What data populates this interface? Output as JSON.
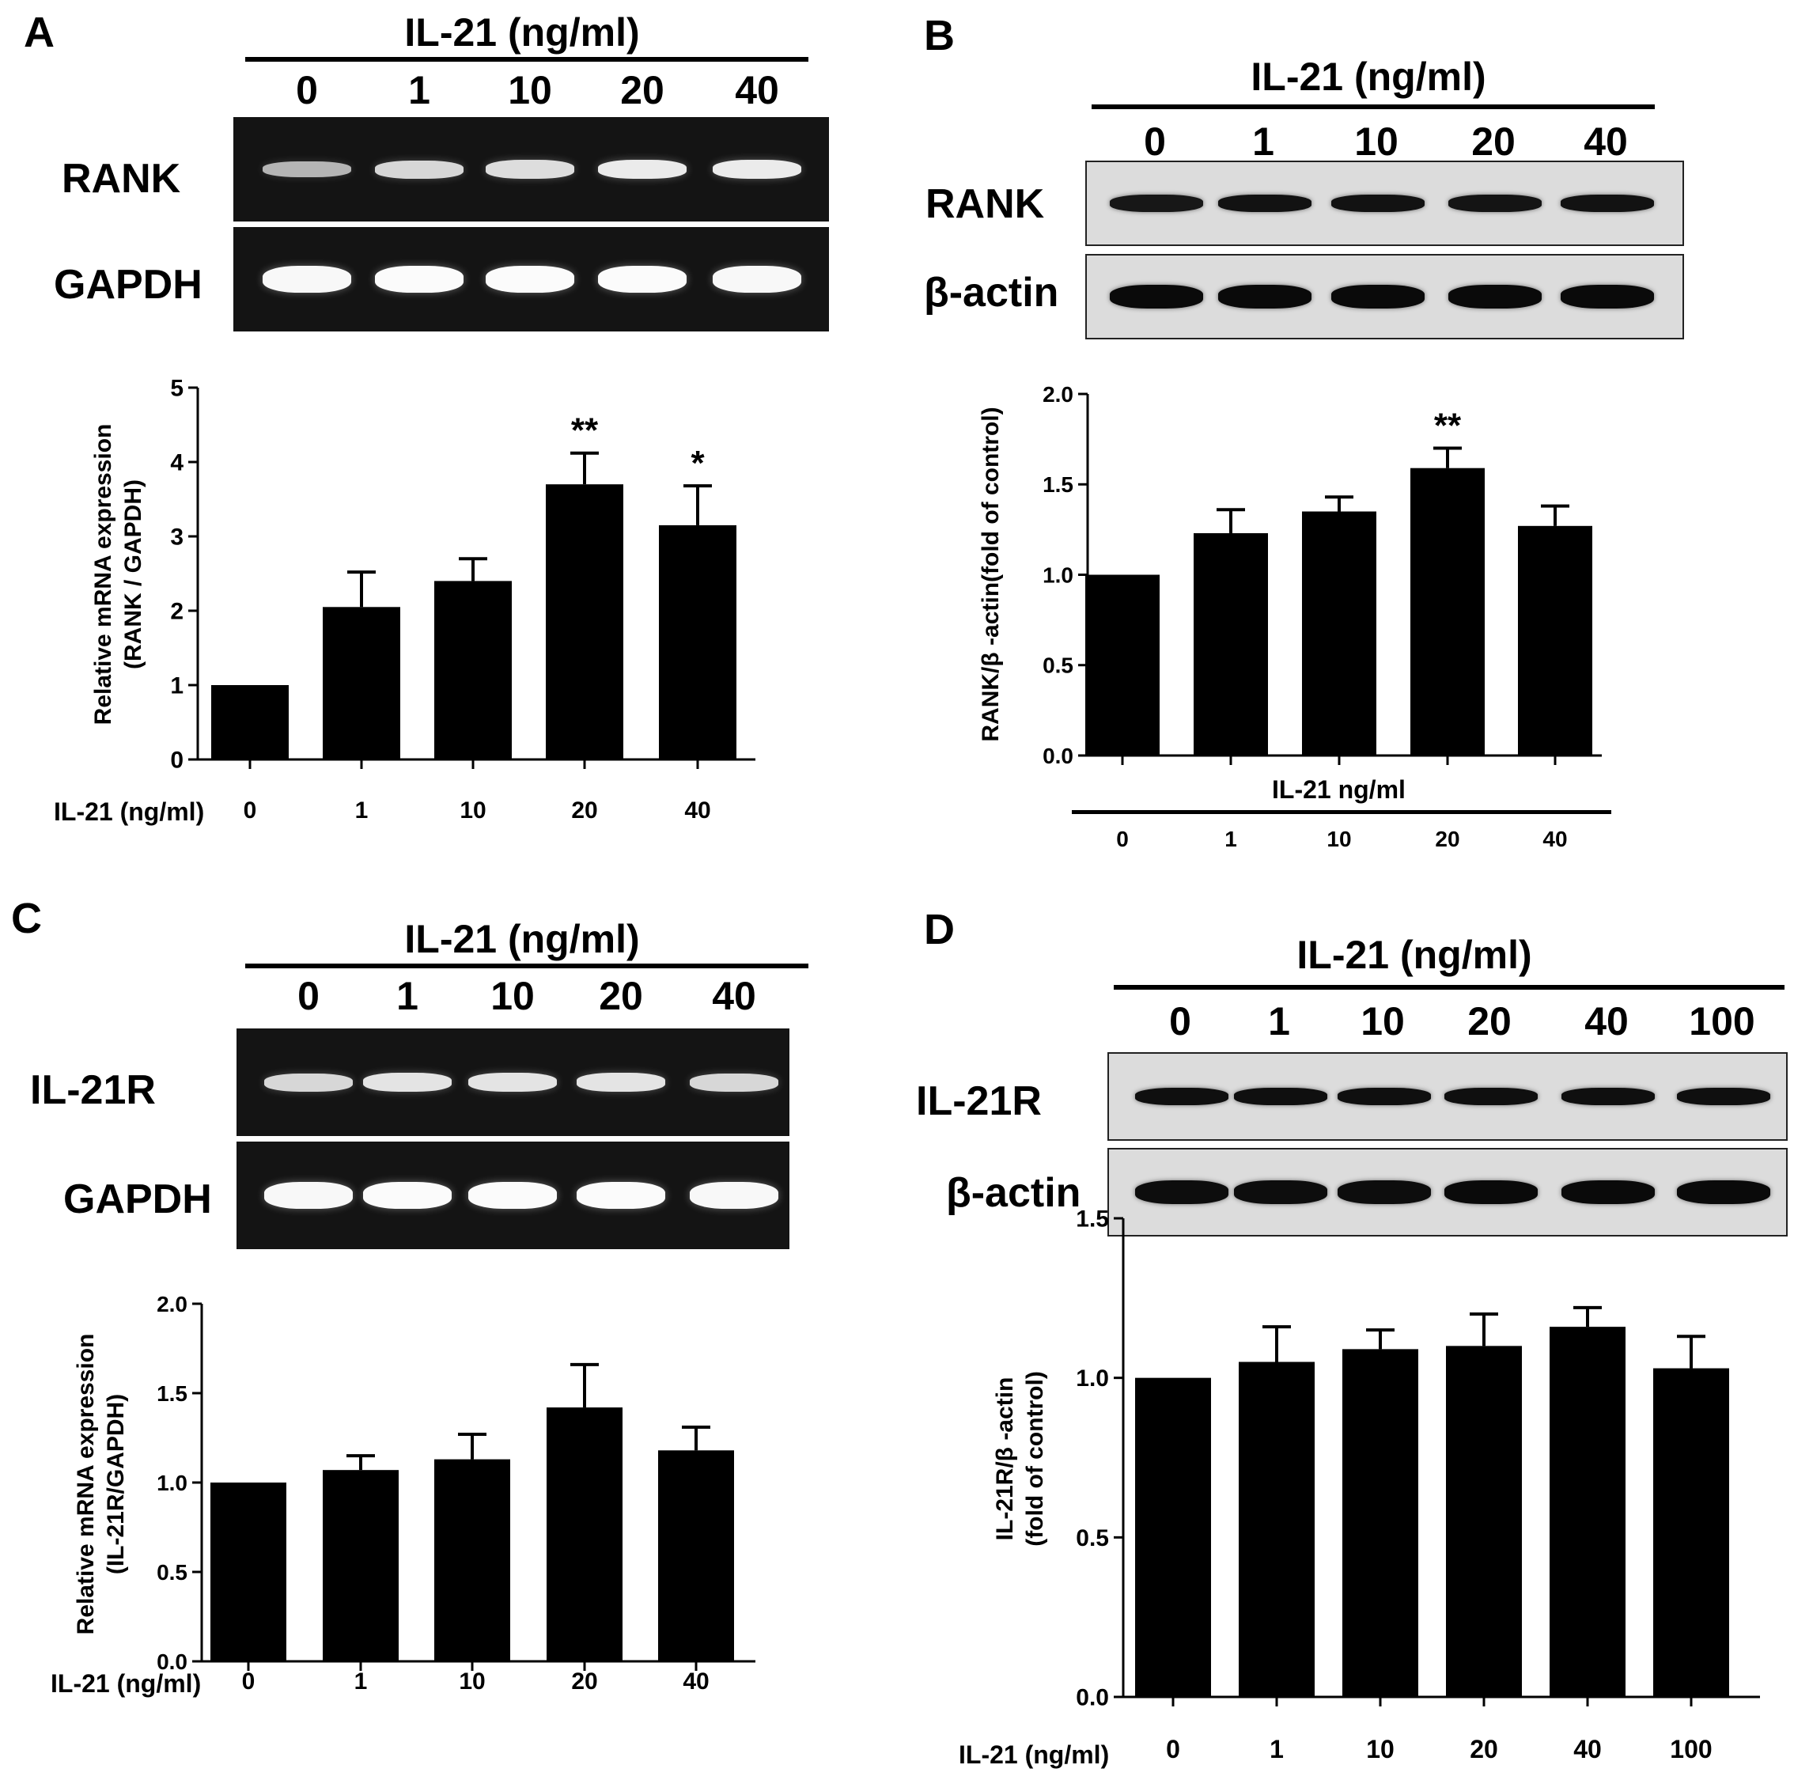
{
  "panels": {
    "A": {
      "letter": "A",
      "header": "IL-21 (ng/ml)",
      "lanes": [
        "0",
        "1",
        "10",
        "20",
        "40"
      ],
      "gel_rows": [
        {
          "label": "RANK",
          "intensity": [
            0.45,
            0.7,
            0.75,
            0.85,
            0.85
          ]
        },
        {
          "label": "GAPDH",
          "intensity": [
            0.95,
            0.97,
            0.97,
            0.97,
            0.95
          ]
        }
      ],
      "x_prefix": "IL-21 (ng/ml)"
    },
    "B": {
      "letter": "B",
      "header": "IL-21 (ng/ml)",
      "lanes": [
        "0",
        "1",
        "10",
        "20",
        "40"
      ],
      "blot_rows": [
        {
          "label": "RANK",
          "intensity": [
            0.75,
            0.85,
            0.85,
            0.8,
            0.85
          ]
        },
        {
          "label": "β-actin",
          "intensity": [
            1.0,
            1.0,
            1.0,
            1.0,
            1.0
          ]
        }
      ],
      "x_header": "IL-21 ng/ml"
    },
    "C": {
      "letter": "C",
      "header": "IL-21 (ng/ml)",
      "lanes": [
        "0",
        "1",
        "10",
        "20",
        "40"
      ],
      "gel_rows": [
        {
          "label": "IL-21R",
          "intensity": [
            0.7,
            0.8,
            0.8,
            0.8,
            0.7
          ]
        },
        {
          "label": "GAPDH",
          "intensity": [
            0.95,
            0.97,
            0.97,
            0.97,
            0.95
          ]
        }
      ],
      "x_prefix": "IL-21 (ng/ml)"
    },
    "D": {
      "letter": "D",
      "header": "IL-21 (ng/ml)",
      "lanes": [
        "0",
        "1",
        "10",
        "20",
        "40",
        "100"
      ],
      "blot_rows": [
        {
          "label": "IL-21R",
          "intensity": [
            0.9,
            0.9,
            0.9,
            0.9,
            0.9,
            0.9
          ]
        },
        {
          "label": "β-actin",
          "intensity": [
            0.95,
            0.95,
            0.95,
            1.0,
            1.0,
            1.0
          ]
        }
      ],
      "x_prefix": "IL-21 (ng/ml)"
    }
  },
  "chart_data": [
    {
      "panel": "A",
      "type": "bar",
      "categories": [
        "0",
        "1",
        "10",
        "20",
        "40"
      ],
      "values": [
        1.0,
        2.05,
        2.4,
        3.7,
        3.15
      ],
      "errors": [
        0,
        0.47,
        0.3,
        0.42,
        0.53
      ],
      "significance": [
        "",
        "",
        "",
        "**",
        "*"
      ],
      "ylabel": "Relative mRNA expression\n(RANK / GAPDH)",
      "ylim": [
        0,
        5
      ],
      "yticks": [
        "0",
        "1",
        "2",
        "3",
        "4",
        "5"
      ],
      "xlabel": "IL-21 (ng/ml)"
    },
    {
      "panel": "B",
      "type": "bar",
      "categories": [
        "0",
        "1",
        "10",
        "20",
        "40"
      ],
      "values": [
        1.0,
        1.23,
        1.35,
        1.59,
        1.27
      ],
      "errors": [
        0,
        0.13,
        0.08,
        0.11,
        0.11
      ],
      "significance": [
        "",
        "",
        "",
        "**",
        ""
      ],
      "ylabel": "RANK/β -actin(fold of control)",
      "ylim": [
        0,
        2.0
      ],
      "yticks": [
        "0.0",
        "0.5",
        "1.0",
        "1.5",
        "2.0"
      ],
      "xlabel": "IL-21 ng/ml"
    },
    {
      "panel": "C",
      "type": "bar",
      "categories": [
        "0",
        "1",
        "10",
        "20",
        "40"
      ],
      "values": [
        1.0,
        1.07,
        1.13,
        1.42,
        1.18
      ],
      "errors": [
        0,
        0.08,
        0.14,
        0.24,
        0.13
      ],
      "significance": [
        "",
        "",
        "",
        "",
        ""
      ],
      "ylabel": "Relative mRNA expression\n(IL-21R/GAPDH)",
      "ylim": [
        0,
        2.0
      ],
      "yticks": [
        "0.0",
        "0.5",
        "1.0",
        "1.5",
        "2.0"
      ],
      "xlabel": "IL-21 (ng/ml)"
    },
    {
      "panel": "D",
      "type": "bar",
      "categories": [
        "0",
        "1",
        "10",
        "20",
        "40",
        "100"
      ],
      "values": [
        1.0,
        1.05,
        1.09,
        1.1,
        1.16,
        1.03
      ],
      "errors": [
        0,
        0.11,
        0.06,
        0.1,
        0.06,
        0.1
      ],
      "significance": [
        "",
        "",
        "",
        "",
        "",
        ""
      ],
      "ylabel": "IL-21R/β -actin\n(fold of control)",
      "ylim": [
        0,
        1.5
      ],
      "yticks": [
        "0.0",
        "0.5",
        "1.0",
        "1.5"
      ],
      "xlabel": "IL-21 (ng/ml)"
    }
  ]
}
